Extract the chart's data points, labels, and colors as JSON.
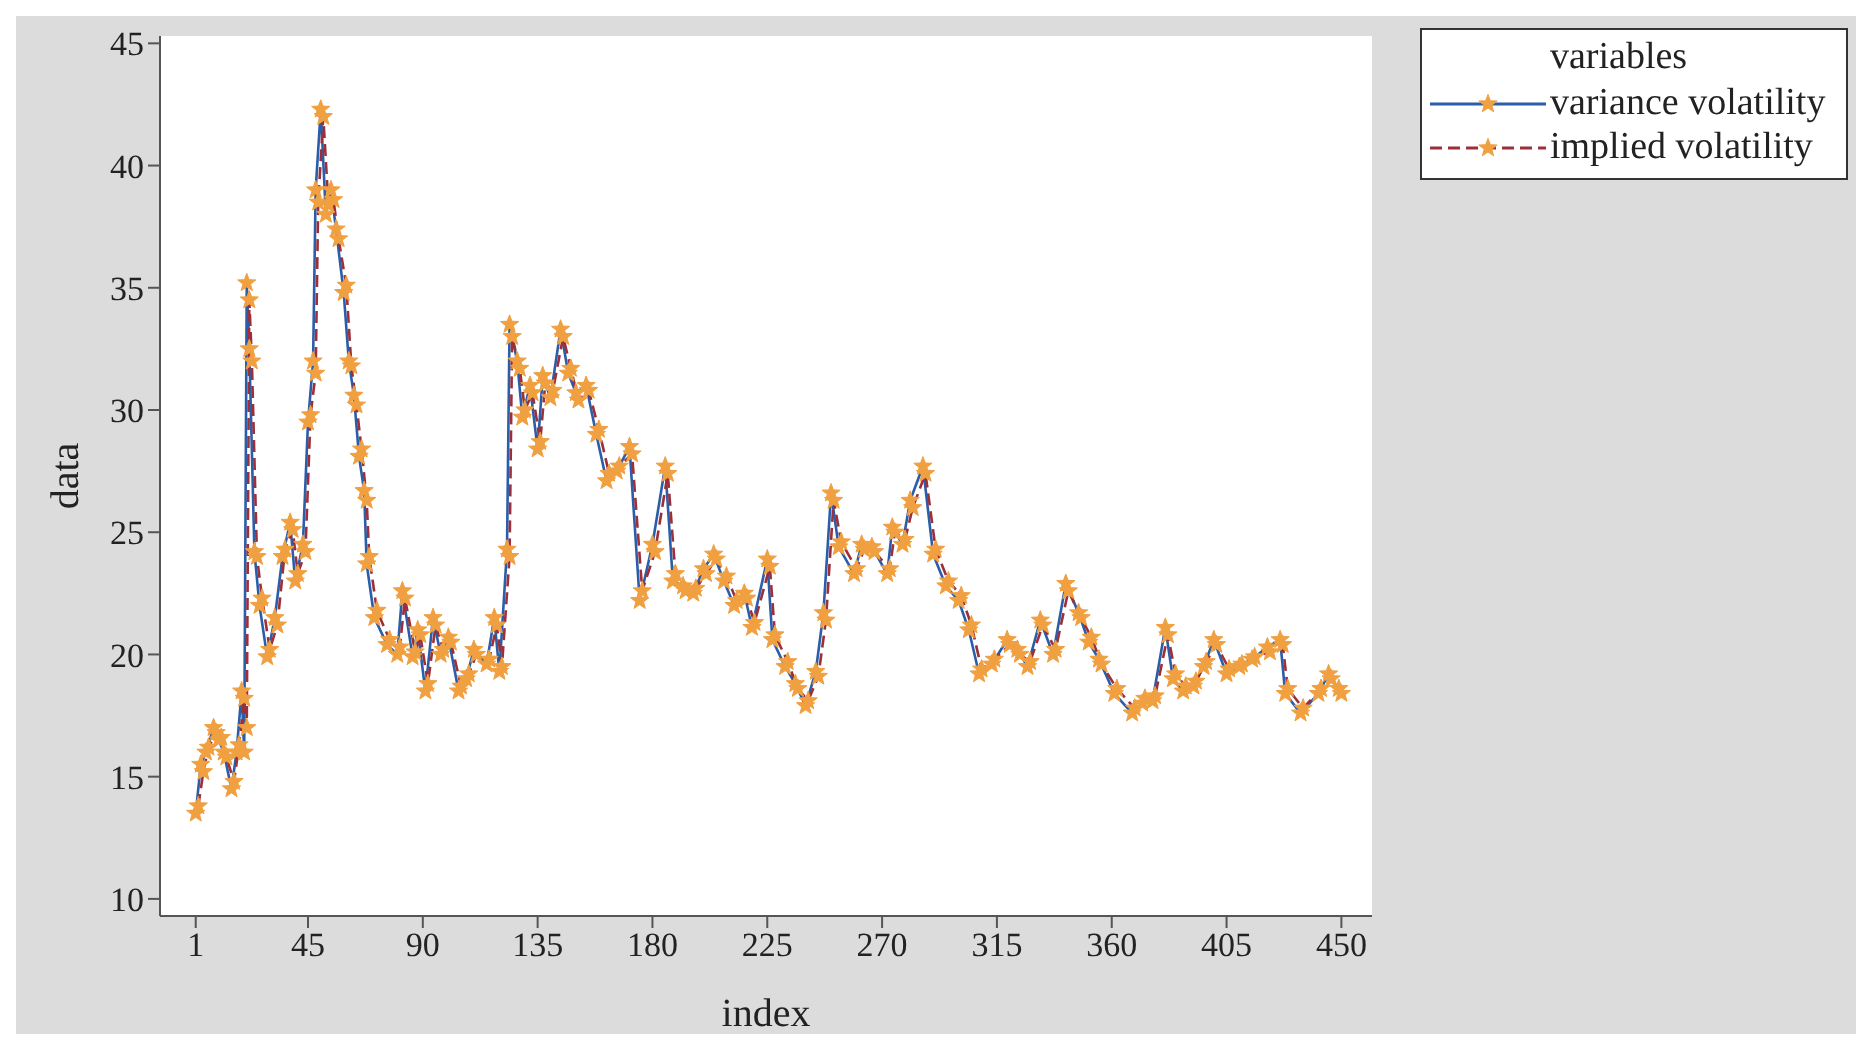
{
  "chart_data": {
    "type": "line",
    "xlabel": "index",
    "ylabel": "data",
    "legend_title": "variables",
    "legend": "top right",
    "marker": "star",
    "grid": false,
    "xlim": [
      -13,
      462
    ],
    "ylim": [
      9.3,
      45.3
    ],
    "xticks": [
      1,
      45,
      90,
      135,
      180,
      225,
      270,
      315,
      360,
      405,
      450
    ],
    "yticks": [
      10,
      15,
      20,
      25,
      30,
      35,
      40,
      45
    ],
    "series": [
      {
        "name": "variance volatility",
        "color": "#2b5ea8",
        "line_style": "solid",
        "x": [
          1,
          3,
          5,
          8,
          10,
          12,
          15,
          17,
          19,
          20,
          21,
          22,
          24,
          26,
          29,
          32,
          35,
          38,
          40,
          43,
          45,
          47,
          48,
          50,
          52,
          54,
          56,
          59,
          61,
          63,
          65,
          67,
          68,
          71,
          76,
          80,
          82,
          86,
          88,
          91,
          94,
          97,
          100,
          104,
          107,
          110,
          115,
          118,
          120,
          123,
          124,
          127,
          129,
          132,
          135,
          137,
          140,
          144,
          147,
          150,
          154,
          158,
          162,
          166,
          171,
          175,
          180,
          185,
          188,
          192,
          196,
          200,
          204,
          208,
          212,
          216,
          219,
          225,
          227,
          232,
          236,
          240,
          244,
          247,
          250,
          253,
          259,
          262,
          266,
          272,
          274,
          278,
          281,
          286,
          290,
          295,
          300,
          304,
          308,
          313,
          319,
          323,
          327,
          332,
          337,
          342,
          347,
          351,
          355,
          361,
          368,
          372,
          376,
          381,
          384,
          388,
          392,
          396,
          400,
          405,
          410,
          415,
          421,
          426,
          428,
          434,
          441,
          445,
          450
        ],
        "values": [
          13.5,
          15.5,
          16,
          17,
          16.5,
          16,
          14.5,
          16,
          18.5,
          16,
          35.2,
          32.5,
          24.2,
          22,
          19.9,
          21.5,
          24,
          25.4,
          23,
          24.5,
          29.5,
          32,
          39,
          42.3,
          38,
          39,
          37.4,
          34.8,
          32,
          30.6,
          28.1,
          26.7,
          23.7,
          21.5,
          20.4,
          20,
          22.6,
          19.9,
          21,
          18.5,
          21.5,
          20,
          20.7,
          18.5,
          19,
          20.2,
          19.6,
          21.5,
          19.3,
          24.3,
          33.5,
          32,
          29.7,
          31,
          28.4,
          31.4,
          30.5,
          33.3,
          31.5,
          30.7,
          31,
          29,
          27.1,
          27.5,
          28.5,
          22.2,
          24.5,
          27.7,
          23,
          22.8,
          22.5,
          23.5,
          24.1,
          23,
          22,
          22.5,
          21.1,
          23.9,
          20.6,
          19.5,
          18.8,
          17.9,
          19.3,
          21.7,
          26.6,
          24.4,
          23.3,
          24.5,
          24.4,
          23.3,
          25.2,
          24.5,
          26.3,
          27.7,
          24.1,
          22.8,
          22.2,
          21,
          19.2,
          19.6,
          20.6,
          20.2,
          19.5,
          21.4,
          20,
          22.9,
          21.7,
          20.5,
          19.8,
          18.4,
          17.6,
          18,
          18.1,
          21.1,
          19,
          18.5,
          18.7,
          19.5,
          20.6,
          19.2,
          19.5,
          19.8,
          20.3,
          20.6,
          18.4,
          17.6,
          18.4,
          19.2,
          18.4
        ]
      },
      {
        "name": "implied volatility",
        "color": "#9b2f3a",
        "line_style": "dashed",
        "x": [
          2,
          4,
          6,
          9,
          11,
          13,
          16,
          18,
          20,
          21,
          22,
          23,
          25,
          27,
          30,
          33,
          36,
          39,
          41,
          44,
          46,
          48,
          49,
          51,
          53,
          55,
          57,
          60,
          62,
          64,
          66,
          68,
          69,
          72,
          77,
          81,
          83,
          87,
          89,
          92,
          95,
          98,
          101,
          105,
          108,
          111,
          116,
          119,
          121,
          124,
          125,
          128,
          130,
          133,
          136,
          138,
          141,
          145,
          148,
          151,
          155,
          159,
          163,
          167,
          172,
          176,
          181,
          186,
          189,
          193,
          197,
          201,
          205,
          209,
          213,
          217,
          220,
          226,
          228,
          233,
          237,
          241,
          245,
          248,
          251,
          254,
          260,
          263,
          267,
          273,
          275,
          279,
          282,
          287,
          291,
          296,
          301,
          305,
          309,
          314,
          320,
          324,
          328,
          333,
          338,
          343,
          348,
          352,
          356,
          362,
          369,
          373,
          377,
          382,
          385,
          389,
          393,
          397,
          401,
          406,
          411,
          416,
          422,
          427,
          429,
          435,
          442,
          446,
          449
        ],
        "values": [
          13.8,
          15.2,
          16.2,
          16.8,
          16.6,
          15.8,
          14.8,
          16.3,
          18.2,
          17,
          34.5,
          32,
          24,
          22.3,
          20.2,
          21.2,
          24.3,
          25.1,
          23.3,
          24.2,
          29.8,
          31.5,
          38.5,
          42,
          38.4,
          38.6,
          37,
          35.1,
          31.8,
          30.2,
          28.4,
          26.3,
          24,
          21.8,
          20.6,
          20.3,
          22.3,
          20.1,
          20.8,
          18.8,
          21.2,
          20.2,
          20.5,
          18.7,
          19.2,
          20,
          19.8,
          21.2,
          19.5,
          24,
          33,
          31.7,
          30,
          30.7,
          28.7,
          31.1,
          30.8,
          33,
          31.7,
          30.4,
          30.8,
          29.2,
          27.4,
          27.7,
          28.2,
          22.6,
          24.2,
          27.4,
          23.3,
          22.6,
          22.7,
          23.3,
          23.9,
          23.2,
          22.2,
          22.3,
          21.3,
          23.6,
          20.8,
          19.7,
          18.6,
          18.1,
          19.1,
          21.4,
          26.3,
          24.6,
          23.5,
          24.3,
          24.2,
          23.5,
          25,
          24.7,
          26,
          27.4,
          24.3,
          23,
          22.4,
          21.2,
          19.4,
          19.8,
          20.4,
          20,
          19.7,
          21.2,
          20.2,
          22.6,
          21.5,
          20.7,
          19.6,
          18.6,
          17.8,
          18.2,
          18.3,
          20.8,
          19.2,
          18.7,
          18.9,
          19.7,
          20.4,
          19.4,
          19.6,
          19.9,
          20.1,
          20.4,
          18.6,
          17.8,
          18.6,
          19,
          18.6
        ]
      }
    ]
  }
}
